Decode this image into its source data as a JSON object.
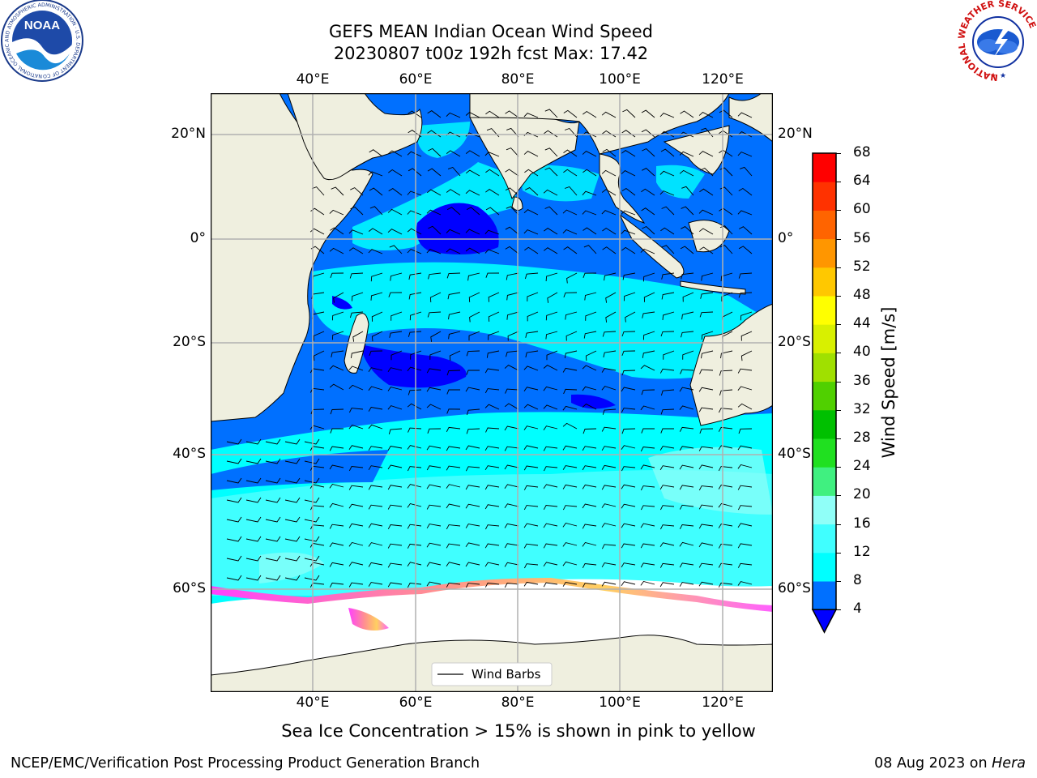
{
  "header": {
    "title_line1": "GEFS MEAN Indian Ocean Wind Speed",
    "title_line2": "20230807 t00z 192h fcst   Max: 17.42"
  },
  "logos": {
    "left": {
      "name": "noaa-logo",
      "text": "NOAA",
      "ring_text": "NATIONAL OCEANIC AND ATMOSPHERIC ADMINISTRATION · U.S. DEPARTMENT OF COMMERCE"
    },
    "right": {
      "name": "nws-logo",
      "ring_text": "NATIONAL WEATHER SERVICE"
    }
  },
  "map": {
    "lon_labels": [
      "40°E",
      "60°E",
      "80°E",
      "100°E",
      "120°E"
    ],
    "lat_labels": [
      "20°N",
      "0°",
      "20°S",
      "40°S",
      "60°S"
    ],
    "legend": {
      "label": "Wind Barbs"
    },
    "colors": {
      "land": "#efefdf",
      "ice_free": "#ffffff",
      "coast": "#000000",
      "grid": "#b0b0b0"
    }
  },
  "colorbar": {
    "label": "Wind Speed [m/s]",
    "ticks": [
      "4",
      "8",
      "12",
      "16",
      "20",
      "24",
      "28",
      "32",
      "36",
      "40",
      "44",
      "48",
      "52",
      "56",
      "60",
      "64",
      "68"
    ],
    "colors": [
      "#0000ff",
      "#0070ff",
      "#00ffff",
      "#40ffff",
      "#90fff8",
      "#40f080",
      "#20e020",
      "#00c000",
      "#50d000",
      "#a0e000",
      "#d8f000",
      "#ffff00",
      "#ffc800",
      "#ff9600",
      "#ff6400",
      "#ff3200",
      "#ff0000"
    ]
  },
  "caption": "Sea Ice Concentration > 15% is shown in pink to yellow",
  "footer": {
    "left": "NCEP/EMC/Verification Post Processing Product Generation Branch",
    "right_prefix": "08 Aug 2023 on ",
    "right_host": "Hera"
  }
}
